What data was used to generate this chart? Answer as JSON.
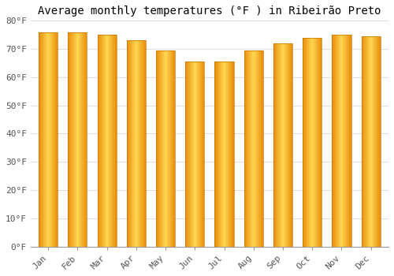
{
  "title": "Average monthly temperatures (°F ) in Ribeirão Preto",
  "months": [
    "Jan",
    "Feb",
    "Mar",
    "Apr",
    "May",
    "Jun",
    "Jul",
    "Aug",
    "Sep",
    "Oct",
    "Nov",
    "Dec"
  ],
  "values": [
    76,
    76,
    75,
    73,
    69.5,
    65.5,
    65.5,
    69.5,
    72,
    74,
    75,
    74.5
  ],
  "bar_color_left": "#FFC72C",
  "bar_color_right": "#E8890A",
  "bar_color_mid": "#FFB300",
  "ylim": [
    0,
    80
  ],
  "yticks": [
    0,
    10,
    20,
    30,
    40,
    50,
    60,
    70,
    80
  ],
  "ytick_labels": [
    "0°F",
    "10°F",
    "20°F",
    "30°F",
    "40°F",
    "50°F",
    "60°F",
    "70°F",
    "80°F"
  ],
  "background_color": "#FFFFFF",
  "grid_color": "#DDDDDD",
  "title_fontsize": 10,
  "tick_fontsize": 8,
  "font_family": "monospace"
}
